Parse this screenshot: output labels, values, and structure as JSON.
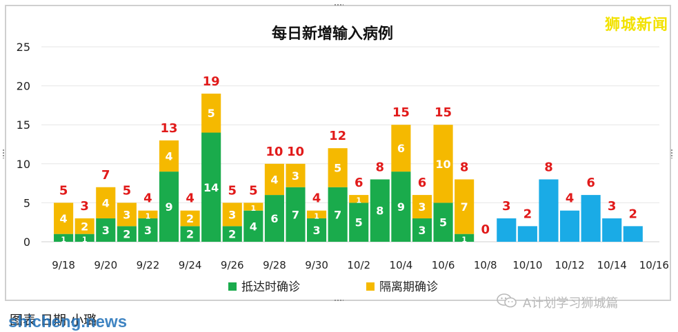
{
  "watermark": "狮城新闻",
  "caption": {
    "text": "图表    日期    小璐",
    "site_mark": "shicheng.news"
  },
  "wechat_tag": {
    "text": "A计划学习狮城篇",
    "icon": "wechat-icon"
  },
  "colors": {
    "arrival": "#1aab4c",
    "quarantine": "#f5b900",
    "recent": "#1aabe6",
    "total_label": "#e11a1a",
    "segment_label": "#ffffff",
    "grid": "#e6e6e6"
  },
  "chart_data": {
    "type": "bar",
    "stacked": true,
    "title": "每日新增输入病例",
    "xlabel": "",
    "ylabel": "",
    "ylim": [
      0,
      25
    ],
    "yticks": [
      "0",
      "5",
      "10",
      "15",
      "20",
      "25"
    ],
    "xticks": [
      "9/18",
      "9/20",
      "9/22",
      "9/24",
      "9/26",
      "9/28",
      "9/30",
      "10/2",
      "10/4",
      "10/6",
      "10/8",
      "10/10",
      "10/12",
      "10/14",
      "10/16"
    ],
    "categories": [
      "9/18",
      "9/19",
      "9/20",
      "9/21",
      "9/22",
      "9/23",
      "9/24",
      "9/25",
      "9/26",
      "9/27",
      "9/28",
      "9/29",
      "9/30",
      "10/1",
      "10/2",
      "10/3",
      "10/4",
      "10/5",
      "10/6",
      "10/7",
      "10/8",
      "10/9",
      "10/10",
      "10/11",
      "10/12",
      "10/13",
      "10/14",
      "10/15"
    ],
    "series": [
      {
        "name": "抵达时确诊",
        "values": [
          1,
          1,
          3,
          2,
          3,
          9,
          2,
          14,
          2,
          4,
          6,
          7,
          3,
          7,
          5,
          8,
          9,
          3,
          5,
          1,
          0,
          null,
          null,
          null,
          null,
          null,
          null,
          null
        ],
        "labels": [
          "1",
          "1",
          "3",
          "2",
          "3",
          "9",
          "2",
          "14",
          "2",
          "4",
          "6",
          "7",
          "3",
          "7",
          "5",
          "8",
          "9",
          "3",
          "5",
          "1",
          "",
          "",
          "",
          "",
          "",
          "",
          "",
          ""
        ]
      },
      {
        "name": "隔离期确诊",
        "values": [
          4,
          2,
          4,
          3,
          1,
          4,
          2,
          5,
          3,
          1,
          4,
          3,
          1,
          5,
          1,
          0,
          6,
          3,
          10,
          7,
          0,
          null,
          null,
          null,
          null,
          null,
          null,
          null
        ],
        "labels": [
          "4",
          "2",
          "4",
          "3",
          "1",
          "4",
          "2",
          "5",
          "3",
          "1",
          "4",
          "3",
          "1",
          "5",
          "1",
          "",
          "6",
          "3",
          "10",
          "7",
          "",
          "",
          "",
          "",
          "",
          "",
          "",
          ""
        ]
      },
      {
        "name": "",
        "values": [
          null,
          null,
          null,
          null,
          null,
          null,
          null,
          null,
          null,
          null,
          null,
          null,
          null,
          null,
          null,
          null,
          null,
          null,
          null,
          null,
          null,
          3,
          2,
          8,
          4,
          6,
          3,
          2
        ],
        "labels": [
          "",
          "",
          "",
          "",
          "",
          "",
          "",
          "",
          "",
          "",
          "",
          "",
          "",
          "",
          "",
          "",
          "",
          "",
          "",
          "",
          "",
          "",
          "",
          "",
          "",
          "",
          "",
          ""
        ]
      }
    ],
    "totals": [
      "5",
      "3",
      "7",
      "5",
      "4",
      "13",
      "4",
      "19",
      "5",
      "5",
      "10",
      "10",
      "4",
      "12",
      "6",
      "8",
      "15",
      "6",
      "15",
      "8",
      "0",
      "3",
      "2",
      "8",
      "4",
      "6",
      "3",
      "2"
    ],
    "legend": {
      "position": "bottom",
      "entries": [
        "抵达时确诊",
        "隔离期确诊"
      ]
    },
    "grid": true
  }
}
